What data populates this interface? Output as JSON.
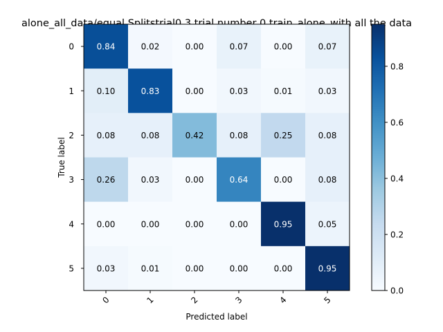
{
  "chart_data": {
    "type": "heatmap",
    "title": "alone_all_data/equal Splitstrial0 3 trial number 0  train_alone_with all the data",
    "xlabel": "Predicted label",
    "ylabel": "True label",
    "x_categories": [
      "0",
      "1",
      "2",
      "3",
      "4",
      "5"
    ],
    "y_categories": [
      "0",
      "1",
      "2",
      "3",
      "4",
      "5"
    ],
    "values": [
      [
        0.84,
        0.02,
        0.0,
        0.07,
        0.0,
        0.07
      ],
      [
        0.1,
        0.83,
        0.0,
        0.03,
        0.01,
        0.03
      ],
      [
        0.08,
        0.08,
        0.42,
        0.08,
        0.25,
        0.08
      ],
      [
        0.26,
        0.03,
        0.0,
        0.64,
        0.0,
        0.08
      ],
      [
        0.0,
        0.0,
        0.0,
        0.0,
        0.95,
        0.05
      ],
      [
        0.03,
        0.01,
        0.0,
        0.0,
        0.0,
        0.95
      ]
    ],
    "value_format": "0.00",
    "colormap": "Blues",
    "color_range": [
      0.0,
      0.95
    ],
    "colorbar_ticks": [
      "0.0",
      "0.2",
      "0.4",
      "0.6",
      "0.8"
    ],
    "x_tick_rotation": "45 degrees",
    "grid": false
  }
}
